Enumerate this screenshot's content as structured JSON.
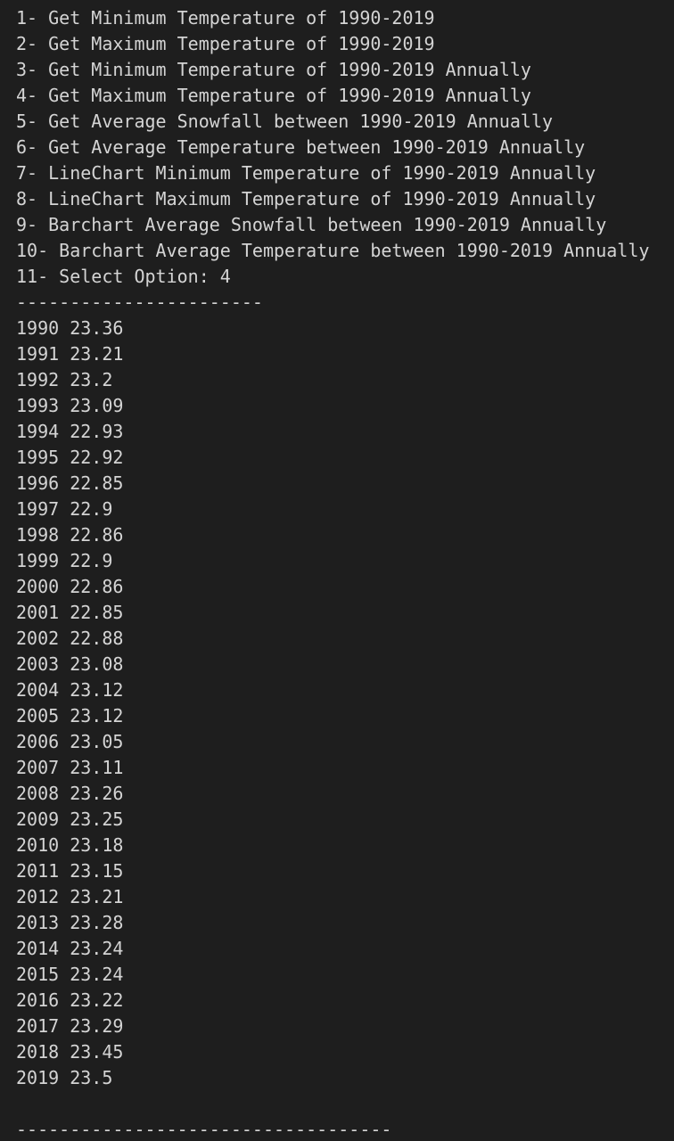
{
  "menu": [
    "1- Get Minimum Temperature of 1990-2019",
    "2- Get Maximum Temperature of 1990-2019",
    "3- Get Minimum Temperature of 1990-2019 Annually",
    "4- Get Maximum Temperature of 1990-2019 Annually",
    "5- Get Average Snowfall between 1990-2019 Annually",
    "6- Get Average Temperature between 1990-2019 Annually",
    "7- LineChart Minimum Temperature of 1990-2019 Annually",
    "8- LineChart Maximum Temperature of 1990-2019 Annually",
    "9- Barchart Average Snowfall between 1990-2019 Annually",
    "10- Barchart Average Temperature between 1990-2019 Annually",
    "11- Select Option: 4"
  ],
  "separator_top": "-----------------------",
  "rows": [
    [
      1990,
      23.36
    ],
    [
      1991,
      23.21
    ],
    [
      1992,
      23.2
    ],
    [
      1993,
      23.09
    ],
    [
      1994,
      22.93
    ],
    [
      1995,
      22.92
    ],
    [
      1996,
      22.85
    ],
    [
      1997,
      22.9
    ],
    [
      1998,
      22.86
    ],
    [
      1999,
      22.9
    ],
    [
      2000,
      22.86
    ],
    [
      2001,
      22.85
    ],
    [
      2002,
      22.88
    ],
    [
      2003,
      23.08
    ],
    [
      2004,
      23.12
    ],
    [
      2005,
      23.12
    ],
    [
      2006,
      23.05
    ],
    [
      2007,
      23.11
    ],
    [
      2008,
      23.26
    ],
    [
      2009,
      23.25
    ],
    [
      2010,
      23.18
    ],
    [
      2011,
      23.15
    ],
    [
      2012,
      23.21
    ],
    [
      2013,
      23.28
    ],
    [
      2014,
      23.24
    ],
    [
      2015,
      23.24
    ],
    [
      2016,
      23.22
    ],
    [
      2017,
      23.29
    ],
    [
      2018,
      23.45
    ],
    [
      2019,
      23.5
    ]
  ],
  "separator_bottom": "-----------------------------------"
}
